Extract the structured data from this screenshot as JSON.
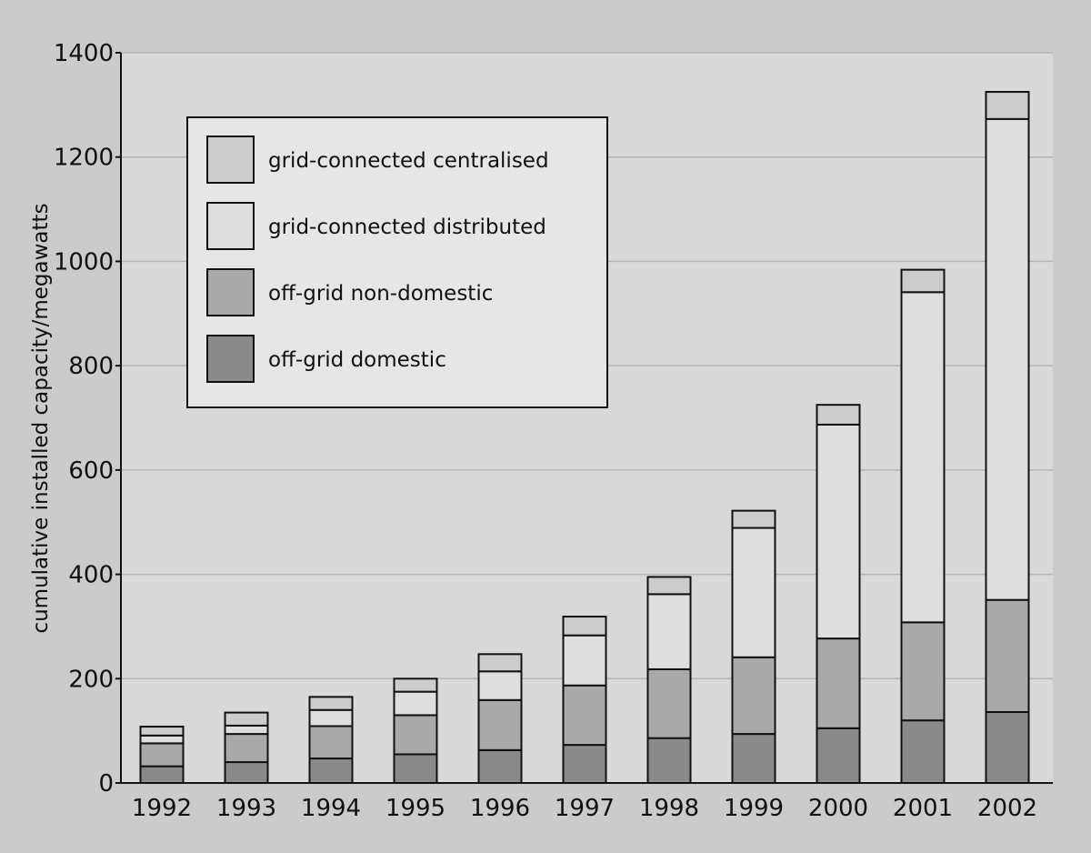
{
  "chart_data": {
    "type": "bar",
    "stacked": true,
    "title": "",
    "xlabel": "",
    "ylabel": "cumulative installed capacity/megawatts",
    "ylim": [
      0,
      1400
    ],
    "yticks": [
      0,
      200,
      400,
      600,
      800,
      1000,
      1200,
      1400
    ],
    "grid": true,
    "legend_position": "top-left",
    "categories": [
      "1992",
      "1993",
      "1994",
      "1995",
      "1996",
      "1997",
      "1998",
      "1999",
      "2000",
      "2001",
      "2002"
    ],
    "series": [
      {
        "name": "off-grid domestic",
        "color": "#8a8a8a",
        "values": [
          32,
          40,
          47,
          55,
          63,
          73,
          86,
          94,
          105,
          120,
          136
        ]
      },
      {
        "name": "off-grid non-domestic",
        "color": "#a9a9a9",
        "values": [
          44,
          54,
          62,
          75,
          96,
          114,
          132,
          147,
          172,
          188,
          215
        ]
      },
      {
        "name": "grid-connected distributed",
        "color": "#dedede",
        "values": [
          15,
          16,
          31,
          45,
          55,
          96,
          144,
          248,
          410,
          633,
          922
        ]
      },
      {
        "name": "grid-connected centralised",
        "color": "#cccccc",
        "values": [
          17,
          25,
          25,
          25,
          33,
          36,
          33,
          33,
          38,
          43,
          52
        ]
      }
    ],
    "legend_order": [
      "grid-connected centralised",
      "grid-connected distributed",
      "off-grid non-domestic",
      "off-grid domestic"
    ]
  }
}
